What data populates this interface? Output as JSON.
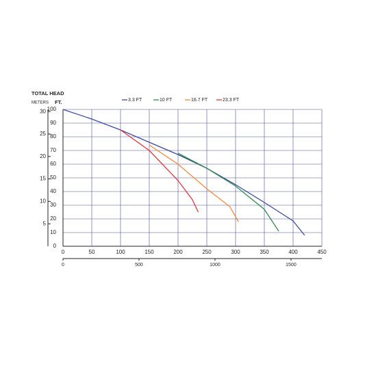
{
  "chart_data": {
    "type": "line",
    "y_label": "TOTAL HEAD",
    "y2_label": "METERS",
    "y_unit": "FT.",
    "xlim": [
      0,
      450
    ],
    "xticks": [
      0,
      50,
      100,
      150,
      200,
      250,
      300,
      350,
      400,
      450
    ],
    "ylim": [
      0,
      100
    ],
    "yticks": [
      0,
      10,
      20,
      30,
      40,
      50,
      60,
      70,
      80,
      90,
      100
    ],
    "y2lim": [
      0,
      30.48
    ],
    "y2ticks": [
      5,
      10,
      15,
      20,
      25,
      30
    ],
    "x2lim": [
      0,
      1703
    ],
    "x2ticks": [
      0,
      500,
      1000,
      1500
    ],
    "grid": true,
    "series": [
      {
        "name": "3.3 FT",
        "color": "#3b4a9e",
        "x": [
          0,
          50,
          100,
          150,
          200,
          250,
          300,
          350,
          400,
          420
        ],
        "values": [
          100,
          93,
          85,
          76,
          67,
          57,
          45,
          32,
          18.5,
          8
        ]
      },
      {
        "name": "10 FT",
        "color": "#2f8a4e",
        "x": [
          200,
          250,
          300,
          350,
          375
        ],
        "values": [
          68,
          57,
          44,
          27,
          11
        ]
      },
      {
        "name": "16.7 FT",
        "color": "#f08a3c",
        "x": [
          150,
          200,
          250,
          290,
          305
        ],
        "values": [
          74,
          60,
          42,
          29,
          18
        ]
      },
      {
        "name": "23.3 FT",
        "color": "#e0353a",
        "x": [
          100,
          150,
          200,
          225,
          235
        ],
        "values": [
          85,
          70,
          48,
          34,
          25
        ]
      }
    ]
  }
}
